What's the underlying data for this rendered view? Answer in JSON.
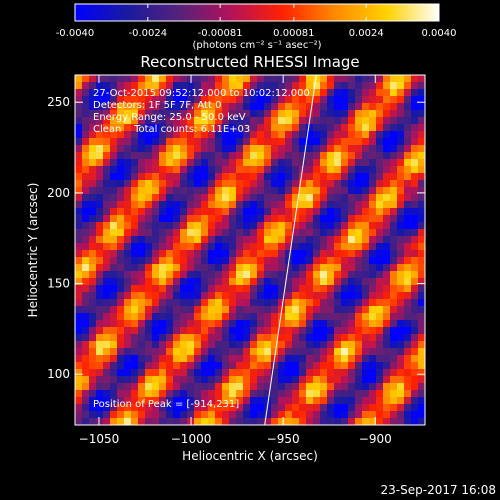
{
  "colorbar": {
    "ticks": [
      "-0.0040",
      "-0.0024",
      "-0.00081",
      "0.00081",
      "0.0024",
      "0.0040"
    ],
    "units_label": "(photons cm⁻² s⁻¹ asec⁻²)",
    "range": [
      -0.004,
      0.004
    ],
    "colors": [
      "#0000ff",
      "#1a1aa0",
      "#55227a",
      "#b3125a",
      "#ff2200",
      "#ff8a00",
      "#ffd200",
      "#ffffff"
    ]
  },
  "chart_data": {
    "type": "heatmap",
    "title": "Reconstructed RHESSI Image",
    "xlabel": "Heliocentric X (arcsec)",
    "ylabel": "Heliocentric Y (arcsec)",
    "xlim": [
      -1063,
      -873
    ],
    "ylim": [
      72,
      265
    ],
    "x_ticks": [
      -1050,
      -1000,
      -950,
      -900
    ],
    "y_ticks": [
      100,
      150,
      200,
      250
    ],
    "annotations": [
      "27-Oct-2015 09:52:12.000 to 10:02:12.000",
      "Detectors: 1F 5F 7F, Att 0",
      "Energy Range: 25.0 - 50.0 keV",
      "Clean    Total counts: 6.11E+03"
    ],
    "peak_label": "Position of Peak = [-914,231]",
    "limb_line": [
      [
        -960,
        72
      ],
      [
        -932,
        265
      ]
    ]
  },
  "footer": {
    "date": "23-Sep-2017 16:08"
  }
}
